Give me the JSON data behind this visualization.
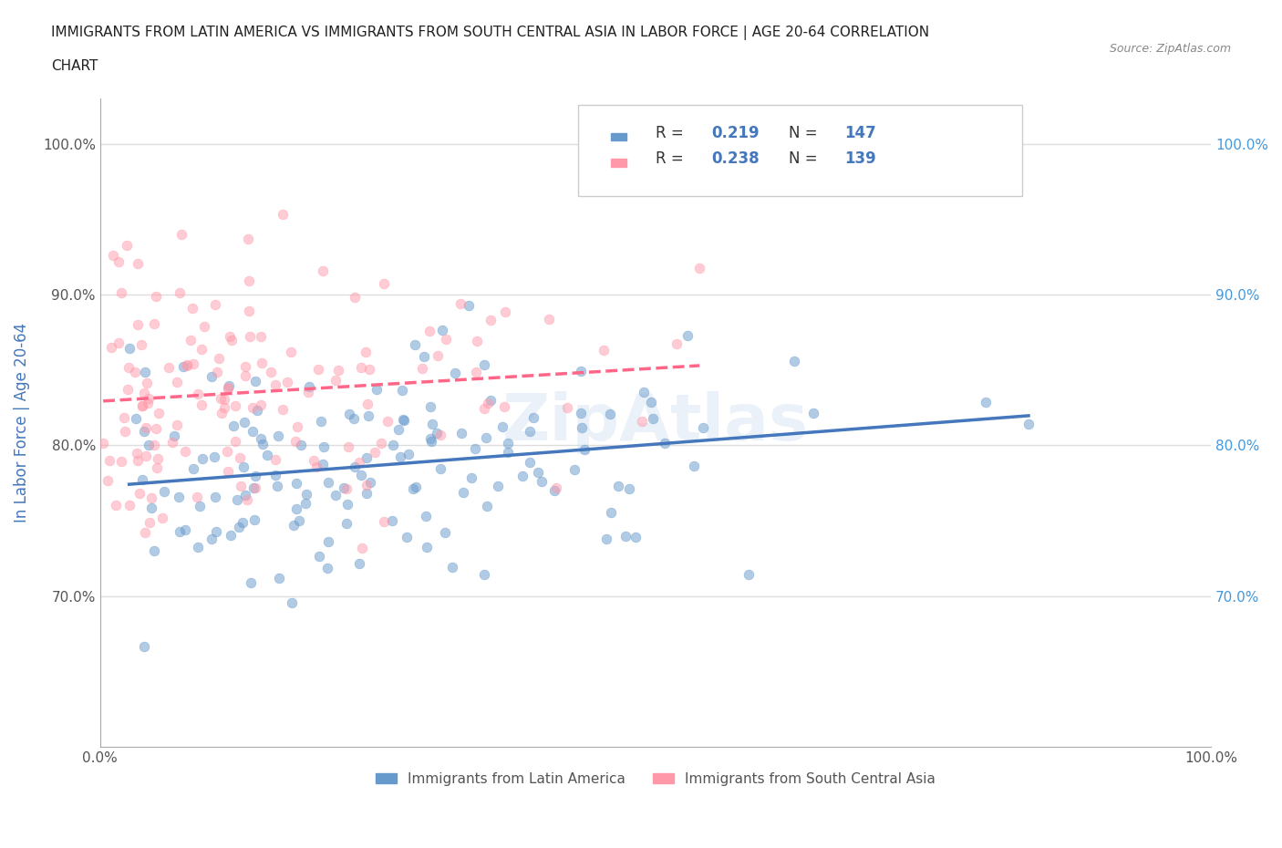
{
  "title_line1": "IMMIGRANTS FROM LATIN AMERICA VS IMMIGRANTS FROM SOUTH CENTRAL ASIA IN LABOR FORCE | AGE 20-64 CORRELATION",
  "title_line2": "CHART",
  "source": "Source: ZipAtlas.com",
  "xlabel": "",
  "ylabel": "In Labor Force | Age 20-64",
  "xlim": [
    0.0,
    1.0
  ],
  "ylim": [
    0.6,
    1.03
  ],
  "yticks": [
    0.7,
    0.8,
    0.9,
    1.0
  ],
  "ytick_labels": [
    "70.0%",
    "80.0%",
    "90.0%",
    "100.0%"
  ],
  "xticks": [
    0.0,
    1.0
  ],
  "xtick_labels": [
    "0.0%",
    "100.0%"
  ],
  "color_latin": "#6699CC",
  "color_asia": "#FF99AA",
  "R_latin": 0.219,
  "N_latin": 147,
  "R_asia": 0.238,
  "N_asia": 139,
  "legend_labels": [
    "Immigrants from Latin America",
    "Immigrants from South Central Asia"
  ],
  "watermark": "ZipAtlas",
  "background_color": "#FFFFFF",
  "grid_color": "#DDDDDD",
  "trend_color_latin": "#4477BB",
  "trend_color_asia": "#FF6688"
}
